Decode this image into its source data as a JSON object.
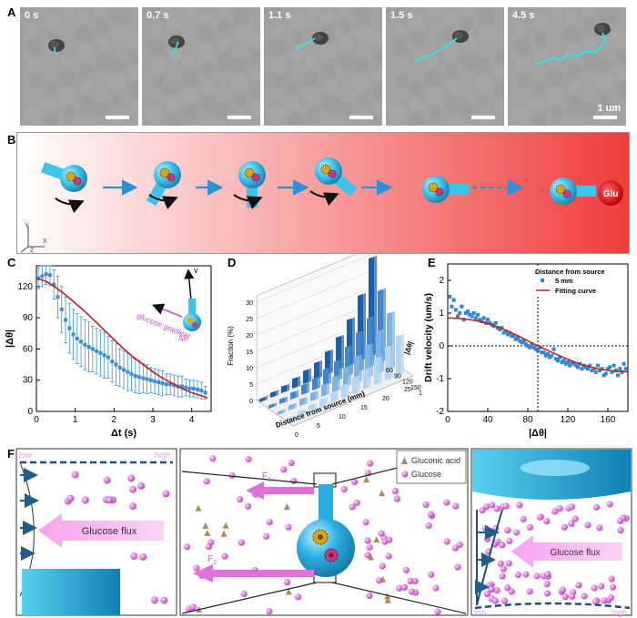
{
  "panel_labels": {
    "a": "A",
    "b": "B",
    "c": "C",
    "d": "D",
    "e": "E",
    "f": "F"
  },
  "panel_a": {
    "frames": [
      "0 s",
      "0.7 s",
      "1.1 s",
      "1.5 s",
      "4.5 s"
    ],
    "scale_label": "1 um"
  },
  "panel_b": {
    "glu_label": "Glu",
    "axis_y": "Y",
    "axis_x": "X",
    "axis_z": "Z",
    "colors": {
      "gradient_start": "#ffffff",
      "gradient_end": "#f03d3d",
      "motor": "#3cc4ea",
      "arrow": "#2f8fd6"
    }
  },
  "chart_data": [
    {
      "type": "line",
      "panel": "C",
      "xlabel": "Δt (s)",
      "ylabel": "|Δθ|",
      "xlim": [
        0,
        4.5
      ],
      "ylim": [
        0,
        140
      ],
      "xticks": [
        0,
        1,
        2,
        3,
        4
      ],
      "yticks": [
        0,
        30,
        60,
        90,
        120
      ],
      "inset_labels": {
        "v": "v",
        "gradient": "glucose gradient",
        "dtheta": "Δθ"
      },
      "series": [
        {
          "kind": "scatter_errorbar",
          "color": "#3d8fd1",
          "x": [
            0.05,
            0.15,
            0.25,
            0.35,
            0.45,
            0.55,
            0.65,
            0.75,
            0.85,
            0.95,
            1.05,
            1.15,
            1.25,
            1.35,
            1.45,
            1.55,
            1.65,
            1.75,
            1.85,
            1.95,
            2.05,
            2.15,
            2.25,
            2.35,
            2.45,
            2.55,
            2.65,
            2.75,
            2.85,
            2.95,
            3.05,
            3.15,
            3.25,
            3.35,
            3.45,
            3.55,
            3.65,
            3.75,
            3.85,
            3.95,
            4.05,
            4.15,
            4.25,
            4.35
          ],
          "y": [
            128,
            130,
            132,
            131,
            122,
            110,
            98,
            88,
            80,
            74,
            70,
            67,
            64,
            62,
            60,
            58,
            56,
            54,
            52,
            48,
            45,
            42,
            40,
            38,
            36,
            34,
            33,
            32,
            31,
            30,
            29,
            28,
            27,
            26,
            26,
            25,
            24,
            24,
            23,
            22,
            22,
            21,
            20,
            18
          ],
          "err": [
            10,
            10,
            10,
            10,
            14,
            20,
            22,
            22,
            24,
            24,
            24,
            24,
            24,
            24,
            22,
            22,
            22,
            22,
            20,
            20,
            20,
            18,
            18,
            18,
            16,
            16,
            16,
            14,
            14,
            12,
            12,
            12,
            12,
            10,
            10,
            10,
            10,
            10,
            8,
            8,
            8,
            8,
            8,
            6
          ]
        },
        {
          "kind": "fit",
          "color": "#c8181e",
          "x": [
            0,
            0.25,
            0.5,
            0.75,
            1,
            1.25,
            1.5,
            1.75,
            2,
            2.25,
            2.5,
            2.75,
            3,
            3.25,
            3.5,
            3.75,
            4,
            4.25,
            4.4
          ],
          "y": [
            128,
            125,
            119,
            112,
            104,
            96,
            87,
            78,
            69,
            60,
            52,
            45,
            38,
            32,
            27,
            22,
            18,
            15,
            13
          ]
        }
      ]
    },
    {
      "type": "bar",
      "panel": "D",
      "subtype": "3d-bar",
      "ylabel": "Fraction (%)",
      "xlabel": "Distance from source (mm)",
      "zlabel": "|Δθ|",
      "yticks": [
        0,
        5,
        10,
        15,
        20,
        25,
        30
      ],
      "distance_ticks": [
        "0",
        "5",
        "10",
        "15",
        "20",
        "25"
      ],
      "angle_ticks": [
        "60",
        "90",
        "120",
        "150",
        "180"
      ],
      "series": [
        {
          "name": "",
          "color": "#1a5fae",
          "values": [
            1,
            1.5,
            2,
            3,
            4,
            5,
            7,
            10,
            14,
            20,
            30
          ]
        },
        {
          "name": "",
          "color": "#3f86d1",
          "values": [
            1,
            1.5,
            2,
            3,
            3.5,
            5,
            6,
            9,
            12,
            15,
            22
          ]
        },
        {
          "name": "",
          "color": "#7cb3e6",
          "values": [
            1,
            1.5,
            2,
            2.5,
            3.5,
            4.5,
            6,
            8,
            10,
            13,
            17
          ]
        },
        {
          "name": "",
          "color": "#b5d6f2",
          "values": [
            1,
            1.5,
            2,
            2.5,
            3,
            4,
            5,
            6,
            8,
            10,
            12
          ]
        }
      ]
    },
    {
      "type": "scatter",
      "panel": "E",
      "xlabel": "|Δθ|",
      "ylabel": "Drift velocity (um/s)",
      "xlim": [
        0,
        180
      ],
      "ylim": [
        -2,
        2.5
      ],
      "xticks": [
        0,
        40,
        80,
        120,
        160
      ],
      "yticks": [
        -2,
        -1,
        0,
        1,
        2
      ],
      "legend_title": "Distance from source",
      "vline_x": 90,
      "series": [
        {
          "name": "5 mm",
          "kind": "points",
          "color": "#2f86d3",
          "x": [
            2,
            4,
            6,
            8,
            10,
            12,
            14,
            16,
            18,
            20,
            22,
            24,
            26,
            28,
            30,
            32,
            34,
            36,
            38,
            40,
            42,
            44,
            46,
            48,
            50,
            52,
            54,
            56,
            58,
            60,
            62,
            64,
            66,
            68,
            70,
            72,
            74,
            76,
            78,
            80,
            82,
            84,
            86,
            88,
            90,
            92,
            94,
            96,
            98,
            100,
            102,
            104,
            106,
            108,
            110,
            112,
            114,
            116,
            118,
            120,
            122,
            124,
            126,
            128,
            130,
            132,
            134,
            136,
            138,
            140,
            142,
            144,
            146,
            148,
            150,
            152,
            154,
            156,
            158,
            160,
            162,
            164,
            166,
            168,
            170,
            172,
            174,
            176,
            178
          ],
          "y": [
            1.5,
            1.2,
            1.4,
            1.1,
            0.9,
            1.0,
            1.2,
            0.8,
            1.0,
            1.05,
            0.95,
            0.9,
            1.0,
            0.85,
            0.95,
            0.8,
            0.75,
            0.85,
            0.7,
            0.8,
            0.7,
            0.65,
            0.6,
            0.7,
            0.55,
            0.5,
            0.55,
            0.4,
            0.45,
            0.35,
            0.4,
            0.3,
            0.3,
            0.2,
            0.25,
            0.15,
            0.1,
            0.15,
            0.05,
            0.0,
            -0.05,
            0.05,
            -0.05,
            -0.1,
            -0.15,
            -0.05,
            -0.2,
            -0.2,
            -0.3,
            -0.25,
            -0.35,
            -0.3,
            -0.1,
            -0.4,
            -0.45,
            -0.35,
            -0.5,
            -0.45,
            -0.55,
            -0.5,
            -0.6,
            -0.5,
            -0.55,
            -0.6,
            -0.65,
            -0.55,
            -0.7,
            -0.6,
            -0.65,
            -0.7,
            -0.6,
            -0.75,
            -0.7,
            -0.8,
            -0.6,
            -0.75,
            -0.7,
            -0.9,
            -0.85,
            -0.7,
            -0.65,
            -0.8,
            -0.6,
            -0.75,
            -0.9,
            -0.7,
            -0.8,
            -0.55,
            -0.7
          ]
        },
        {
          "name": "Fitting curve",
          "kind": "line",
          "color": "#c8181e",
          "x": [
            0,
            10,
            20,
            30,
            40,
            50,
            60,
            70,
            80,
            90,
            100,
            110,
            120,
            130,
            140,
            150,
            160,
            170,
            180
          ],
          "y": [
            0.85,
            0.84,
            0.81,
            0.76,
            0.68,
            0.58,
            0.45,
            0.31,
            0.15,
            0.0,
            -0.14,
            -0.28,
            -0.41,
            -0.53,
            -0.62,
            -0.7,
            -0.75,
            -0.78,
            -0.79
          ]
        }
      ]
    }
  ],
  "panel_f": {
    "left": {
      "low": "low",
      "high": "high",
      "flux": "Glucose flux"
    },
    "middle": {
      "f1": "F",
      "f1_sub": "1",
      "f2": "F",
      "f2_sub": "2",
      "legend_gluconic": "Gluconic acid",
      "legend_glucose": "Glucose"
    },
    "right": {
      "low": "low",
      "high": "high",
      "flux": "Glucose flux"
    },
    "colors": {
      "glucose": "#d75fd5",
      "gluconic": "#b08a5a",
      "flux": "#f29ae8",
      "motor": "#2aaee2"
    }
  }
}
